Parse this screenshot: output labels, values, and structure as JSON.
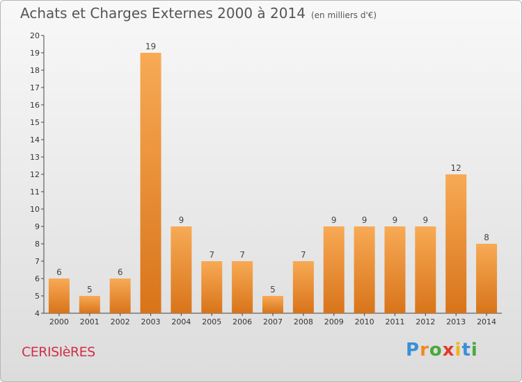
{
  "title": "Achats et Charges Externes 2000 à 2014",
  "subtitle": "(en milliers d'€)",
  "place": "CERISIèRES",
  "logo": {
    "letters": [
      "P",
      "r",
      "o",
      "x",
      "i",
      "t",
      "i"
    ],
    "colors": [
      "#3a8fd8",
      "#f08a1c",
      "#49a83a",
      "#e43a2a",
      "#f0b21c",
      "#3a8fd8",
      "#49a83a"
    ]
  },
  "colors": {
    "bar": "#f0902e",
    "bar_light": "#f8aa55",
    "bar_dark": "#d8741a",
    "title": "#555555",
    "place": "#d0304a"
  },
  "chart_data": {
    "type": "bar",
    "categories": [
      "2000",
      "2001",
      "2002",
      "2003",
      "2004",
      "2005",
      "2006",
      "2007",
      "2008",
      "2009",
      "2010",
      "2011",
      "2012",
      "2013",
      "2014"
    ],
    "values": [
      6,
      5,
      6,
      19,
      9,
      7,
      7,
      5,
      7,
      9,
      9,
      9,
      9,
      12,
      8
    ],
    "y_ticks": [
      "4",
      "5",
      "6",
      "7",
      "8",
      "9",
      "10",
      "11",
      "12",
      "13",
      "14",
      "15",
      "16",
      "17",
      "18",
      "19",
      "20"
    ],
    "ylim": [
      4,
      20
    ],
    "grid": false,
    "data_labels": true
  }
}
